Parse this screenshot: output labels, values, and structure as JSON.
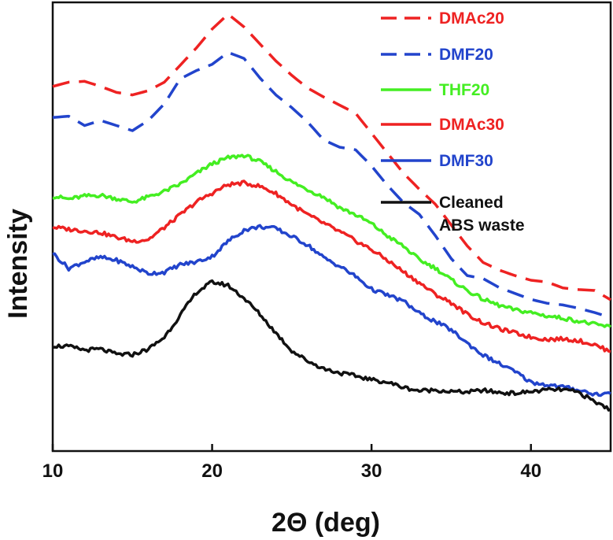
{
  "chart_data": {
    "type": "line",
    "xlabel": "2Θ (deg)",
    "ylabel": "Intensity",
    "xlim": [
      10,
      45
    ],
    "ylim": [
      0,
      100
    ],
    "xticks": [
      "10",
      "20",
      "30",
      "40"
    ],
    "xtick_values": [
      10,
      20,
      30,
      40
    ],
    "y_tick_labels_shown": false,
    "grid": false,
    "legend_position": "top-right",
    "series": [
      {
        "name": "DMAc20",
        "color": "#ee2222",
        "dash": "dashed",
        "points": [
          [
            10,
            83
          ],
          [
            11,
            84
          ],
          [
            12,
            84.2
          ],
          [
            13,
            83
          ],
          [
            14,
            81.6
          ],
          [
            15,
            81
          ],
          [
            16,
            82
          ],
          [
            17,
            84
          ],
          [
            18,
            88
          ],
          [
            19,
            92
          ],
          [
            20,
            96.5
          ],
          [
            21,
            100
          ],
          [
            22,
            97
          ],
          [
            23,
            93
          ],
          [
            24,
            89
          ],
          [
            25,
            85.6
          ],
          [
            26,
            82.6
          ],
          [
            27,
            80.5
          ],
          [
            28,
            78.6
          ],
          [
            29,
            76.7
          ],
          [
            30,
            72
          ],
          [
            31,
            67.3
          ],
          [
            32,
            62.6
          ],
          [
            33,
            58.8
          ],
          [
            34,
            55.3
          ],
          [
            35,
            50.4
          ],
          [
            36,
            45.5
          ],
          [
            37,
            41.6
          ],
          [
            38,
            39.8
          ],
          [
            39,
            38.5
          ],
          [
            40,
            37.4
          ],
          [
            41,
            37
          ],
          [
            42,
            35.6
          ],
          [
            43,
            35.2
          ],
          [
            44,
            35.0
          ],
          [
            45,
            32.8
          ]
        ]
      },
      {
        "name": "DMF20",
        "color": "#2244cc",
        "dash": "dashed",
        "points": [
          [
            10,
            75.7
          ],
          [
            11,
            76
          ],
          [
            12,
            73.8
          ],
          [
            13,
            75
          ],
          [
            14,
            73.8
          ],
          [
            15,
            72.6
          ],
          [
            16,
            75
          ],
          [
            17,
            78.9
          ],
          [
            18,
            84.8
          ],
          [
            19,
            86.7
          ],
          [
            20,
            88.2
          ],
          [
            21,
            91
          ],
          [
            22,
            89.6
          ],
          [
            23,
            85
          ],
          [
            24,
            81
          ],
          [
            25,
            78
          ],
          [
            26,
            74.6
          ],
          [
            27,
            70.4
          ],
          [
            28,
            68.7
          ],
          [
            29,
            68.1
          ],
          [
            30,
            64.3
          ],
          [
            31,
            59.7
          ],
          [
            32,
            55.7
          ],
          [
            33,
            52.9
          ],
          [
            34,
            47.9
          ],
          [
            35,
            42.5
          ],
          [
            36,
            38.5
          ],
          [
            37,
            37.8
          ],
          [
            38,
            35.7
          ],
          [
            39,
            34.3
          ],
          [
            40,
            32.9
          ],
          [
            41,
            32.0
          ],
          [
            42,
            31.6
          ],
          [
            43,
            30.8
          ],
          [
            44,
            29.8
          ],
          [
            45,
            28.6
          ]
        ]
      },
      {
        "name": "THF20",
        "color": "#44ee22",
        "dash": "solid",
        "points": [
          [
            10,
            57.2
          ],
          [
            11,
            56.5
          ],
          [
            12,
            57.2
          ],
          [
            13,
            57.4
          ],
          [
            14,
            56.6
          ],
          [
            15,
            55.8
          ],
          [
            16,
            57
          ],
          [
            17,
            58.3
          ],
          [
            18,
            60
          ],
          [
            19,
            62.5
          ],
          [
            20,
            64.8
          ],
          [
            21,
            66.2
          ],
          [
            22,
            66.8
          ],
          [
            23,
            65.3
          ],
          [
            24,
            63
          ],
          [
            25,
            60.5
          ],
          [
            26,
            58.7
          ],
          [
            27,
            57
          ],
          [
            28,
            54.5
          ],
          [
            29,
            52.8
          ],
          [
            30,
            50.7
          ],
          [
            31,
            47.8
          ],
          [
            32,
            45.4
          ],
          [
            33,
            42.2
          ],
          [
            34,
            40.3
          ],
          [
            35,
            37.5
          ],
          [
            36,
            35.0
          ],
          [
            37,
            32.9
          ],
          [
            38,
            31.5
          ],
          [
            39,
            30.4
          ],
          [
            40,
            29.8
          ],
          [
            41,
            29.0
          ],
          [
            42,
            28.5
          ],
          [
            43,
            27.8
          ],
          [
            44,
            27.0
          ],
          [
            45,
            26.4
          ]
        ]
      },
      {
        "name": "DMAc30",
        "color": "#ee2222",
        "dash": "solid",
        "points": [
          [
            10,
            49.9
          ],
          [
            11,
            49.4
          ],
          [
            12,
            49.0
          ],
          [
            13,
            48.6
          ],
          [
            14,
            47.5
          ],
          [
            15,
            46.6
          ],
          [
            16,
            47.0
          ],
          [
            17,
            49.8
          ],
          [
            18,
            52.8
          ],
          [
            19,
            55.8
          ],
          [
            20,
            57.9
          ],
          [
            21,
            59.9
          ],
          [
            22,
            60.3
          ],
          [
            23,
            59.5
          ],
          [
            24,
            57.8
          ],
          [
            25,
            55.2
          ],
          [
            26,
            52.8
          ],
          [
            27,
            50.8
          ],
          [
            28,
            48.8
          ],
          [
            29,
            46.7
          ],
          [
            30,
            44.6
          ],
          [
            31,
            42.1
          ],
          [
            32,
            39.4
          ],
          [
            33,
            36.8
          ],
          [
            34,
            34.1
          ],
          [
            35,
            32.1
          ],
          [
            36,
            29.4
          ],
          [
            37,
            27.4
          ],
          [
            38,
            26.0
          ],
          [
            39,
            25.0
          ],
          [
            40,
            24.0
          ],
          [
            41,
            23.5
          ],
          [
            42,
            23.6
          ],
          [
            43,
            23.2
          ],
          [
            44,
            22.2
          ],
          [
            45,
            20.6
          ]
        ]
      },
      {
        "name": "DMF30",
        "color": "#2244cc",
        "dash": "solid",
        "points": [
          [
            10,
            43.8
          ],
          [
            11,
            40.2
          ],
          [
            12,
            41.8
          ],
          [
            13,
            42.8
          ],
          [
            14,
            42.1
          ],
          [
            15,
            40.6
          ],
          [
            16,
            39.0
          ],
          [
            17,
            39.3
          ],
          [
            18,
            41.1
          ],
          [
            19,
            41.7
          ],
          [
            20,
            43.0
          ],
          [
            21,
            46.6
          ],
          [
            22,
            49.2
          ],
          [
            23,
            50.0
          ],
          [
            24,
            49.6
          ],
          [
            25,
            47.7
          ],
          [
            26,
            45.7
          ],
          [
            27,
            42.7
          ],
          [
            28,
            40.7
          ],
          [
            29,
            38.3
          ],
          [
            30,
            35.3
          ],
          [
            31,
            33.9
          ],
          [
            32,
            32.5
          ],
          [
            33,
            29.6
          ],
          [
            34,
            27.7
          ],
          [
            35,
            25.7
          ],
          [
            36,
            22.6
          ],
          [
            37,
            19.8
          ],
          [
            38,
            17.8
          ],
          [
            39,
            15.9
          ],
          [
            40,
            13.4
          ],
          [
            41,
            12.8
          ],
          [
            42,
            12.3
          ],
          [
            43,
            11.6
          ],
          [
            44,
            10.6
          ],
          [
            45,
            10.7
          ]
        ]
      },
      {
        "name": "Cleaned ABS waste",
        "color": "#111111",
        "dash": "solid",
        "points": [
          [
            10,
            22.0
          ],
          [
            11,
            21.8
          ],
          [
            12,
            21.0
          ],
          [
            13,
            21.2
          ],
          [
            14,
            20.0
          ],
          [
            15,
            19.9
          ],
          [
            16,
            21.2
          ],
          [
            17,
            24.0
          ],
          [
            18,
            29.2
          ],
          [
            19,
            34.5
          ],
          [
            20,
            37.0
          ],
          [
            21,
            36.2
          ],
          [
            22,
            33.2
          ],
          [
            23,
            29.4
          ],
          [
            24,
            25.0
          ],
          [
            25,
            20.8
          ],
          [
            26,
            18.4
          ],
          [
            27,
            16.6
          ],
          [
            28,
            15.6
          ],
          [
            29,
            14.9
          ],
          [
            30,
            14.0
          ],
          [
            31,
            13.4
          ],
          [
            32,
            12.2
          ],
          [
            33,
            11.4
          ],
          [
            34,
            11.6
          ],
          [
            35,
            11.2
          ],
          [
            36,
            11.1
          ],
          [
            37,
            11.5
          ],
          [
            38,
            11.0
          ],
          [
            39,
            10.8
          ],
          [
            40,
            11.2
          ],
          [
            41,
            11.6
          ],
          [
            42,
            11.7
          ],
          [
            43,
            11.0
          ],
          [
            44,
            8.8
          ],
          [
            45,
            7.0
          ]
        ]
      }
    ]
  }
}
